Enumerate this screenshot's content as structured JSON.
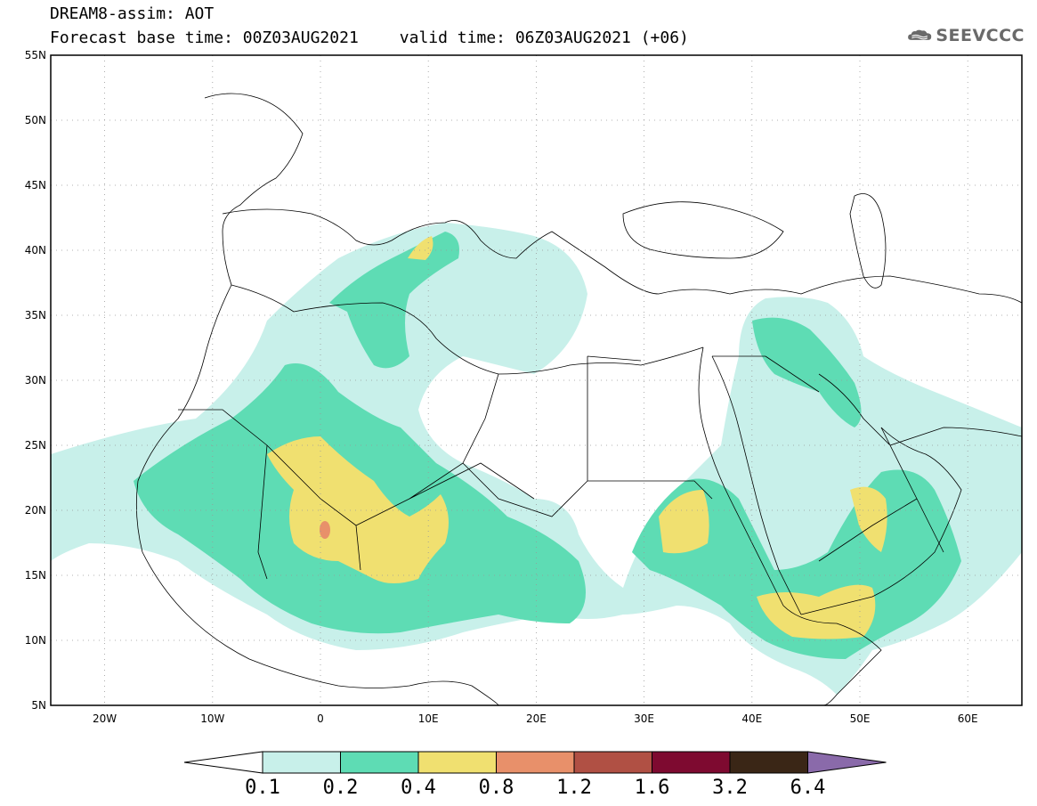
{
  "title": {
    "line1": "DREAM8-assim: AOT",
    "base_time": "Forecast base time: 00Z03AUG2021",
    "valid_time": "valid time: 06Z03AUG2021 (+06)"
  },
  "logo": {
    "text": "SEEVCCC",
    "icon": "cloud-icon",
    "color": "#6a6a6a"
  },
  "map": {
    "lon_range": [
      -25,
      65
    ],
    "lat_range": [
      5,
      55
    ],
    "lat_labels": [
      "55N",
      "50N",
      "45N",
      "40N",
      "35N",
      "30N",
      "25N",
      "20N",
      "15N",
      "10N",
      "5N"
    ],
    "lon_labels": [
      "20W",
      "10W",
      "0",
      "10E",
      "20E",
      "30E",
      "40E",
      "50E",
      "60E"
    ],
    "grid": "dotted"
  },
  "colorbar": {
    "colors": [
      "#c8f0ea",
      "#5edcb4",
      "#f0e070",
      "#e8906a",
      "#b05044",
      "#7e0a30",
      "#3a2616",
      "#8a6aaa"
    ],
    "labels": [
      "0.1",
      "0.2",
      "0.4",
      "0.8",
      "1.2",
      "1.6",
      "3.2",
      "6.4"
    ]
  }
}
